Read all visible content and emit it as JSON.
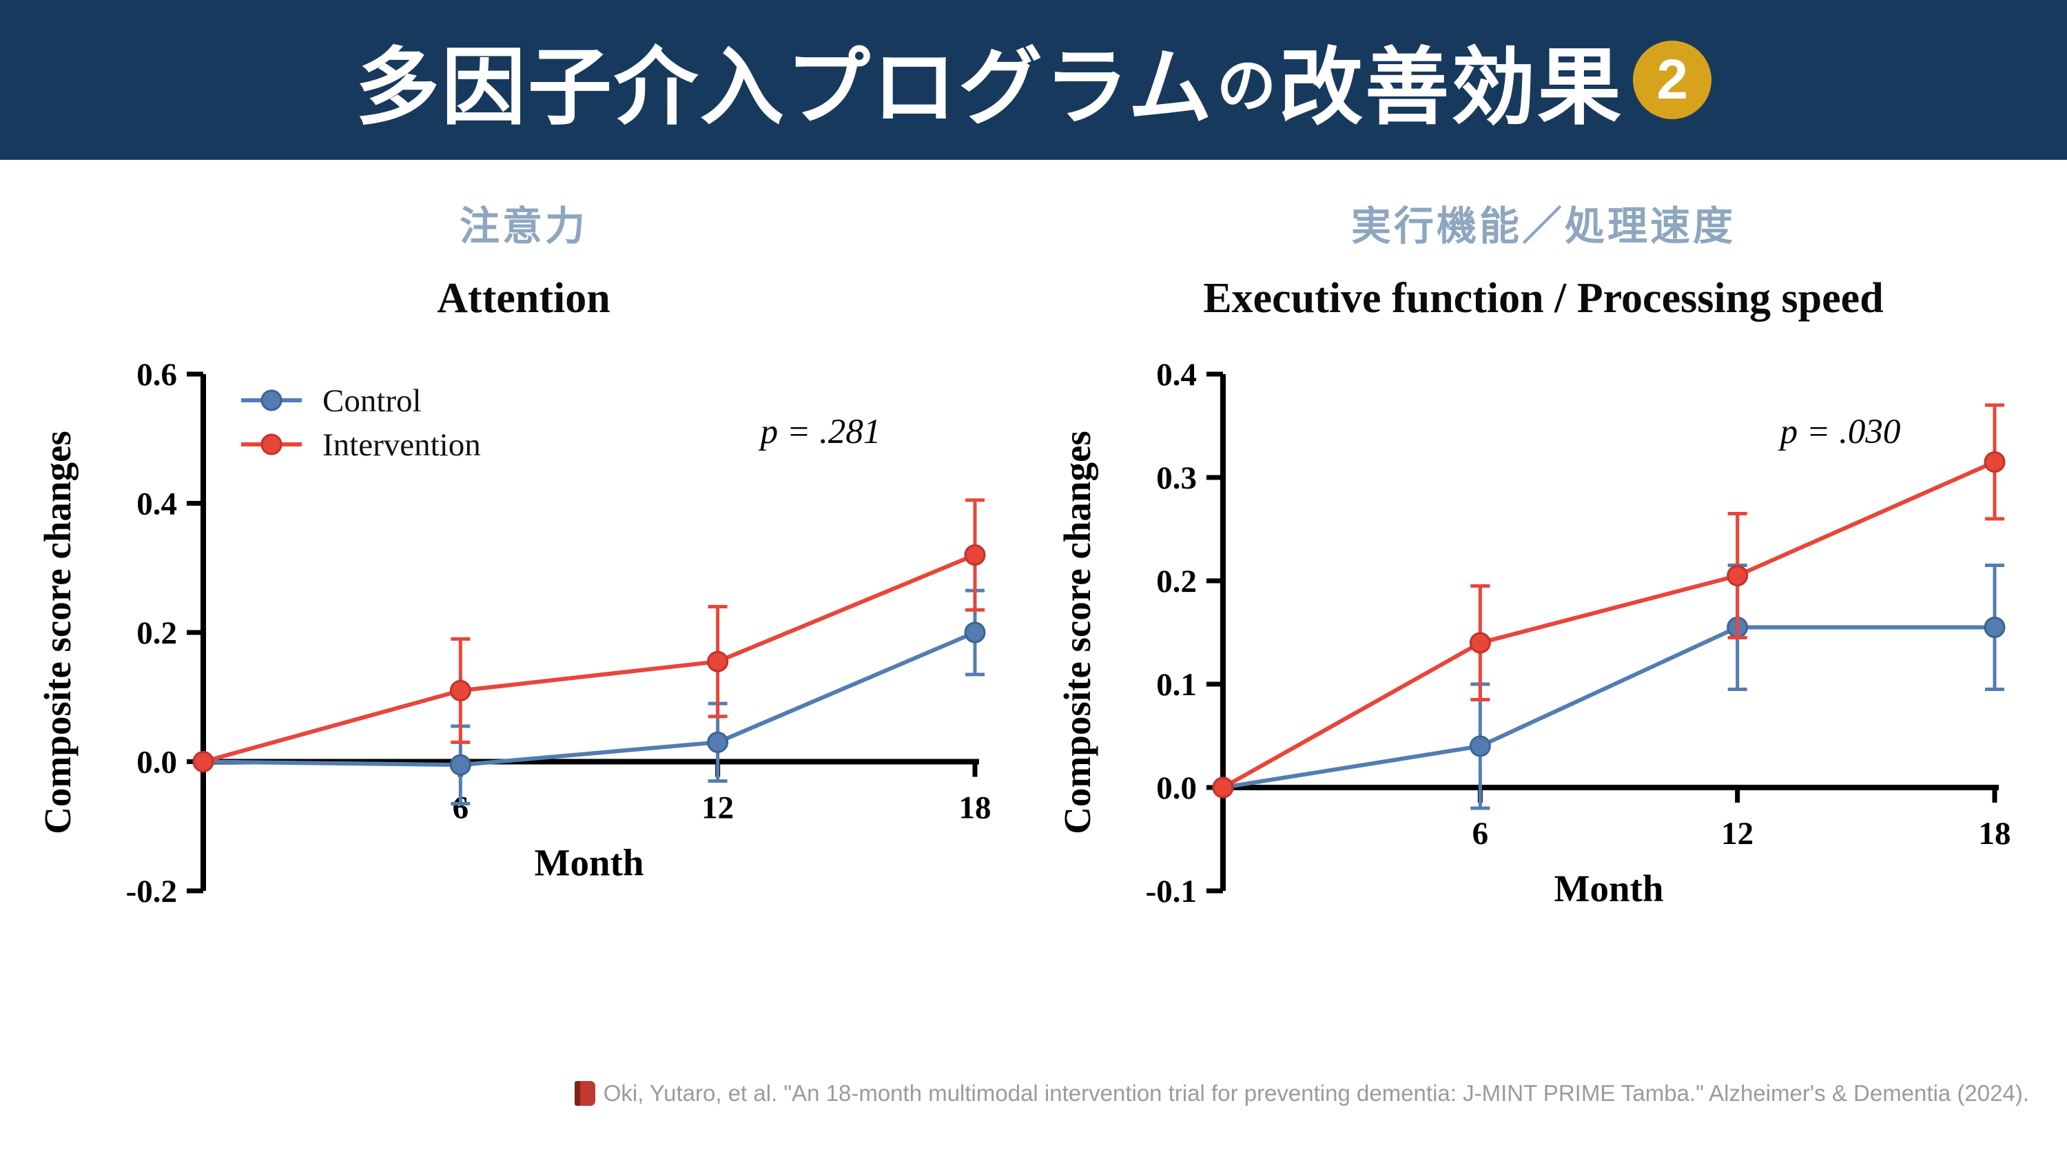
{
  "header": {
    "title_parts": [
      "多因子介入プログラム",
      "の",
      "改善効果"
    ],
    "badge": "2",
    "bg_color": "#17395d",
    "badge_color": "#d7a31d"
  },
  "colors": {
    "control": "#537db1",
    "control_edge": "#3b6494",
    "intervention": "#e8463a",
    "intervention_edge": "#c23228",
    "axis": "#000000"
  },
  "chart_data": [
    {
      "type": "line",
      "subtitle_ja": "注意力",
      "title": "Attention",
      "p_label": "p = .281",
      "xlabel": "Month",
      "ylabel": "Composite score changes",
      "x": [
        0,
        6,
        12,
        18
      ],
      "xticks": [
        6,
        12,
        18
      ],
      "xlim": [
        0,
        18
      ],
      "ylim": [
        -0.2,
        0.6
      ],
      "yticks": [
        -0.2,
        0.0,
        0.2,
        0.4,
        0.6
      ],
      "grid": false,
      "legend": true,
      "legend_position": "top-left",
      "series": [
        {
          "name": "Control",
          "color_key": "control",
          "values": [
            0,
            -0.005,
            0.03,
            0.2
          ],
          "errors": [
            0,
            0.06,
            0.06,
            0.065
          ]
        },
        {
          "name": "Intervention",
          "color_key": "intervention",
          "values": [
            0,
            0.11,
            0.155,
            0.32
          ],
          "errors": [
            0,
            0.08,
            0.085,
            0.085
          ]
        }
      ]
    },
    {
      "type": "line",
      "subtitle_ja": "実行機能／処理速度",
      "title": "Executive function / Processing speed",
      "p_label": "p = .030",
      "xlabel": "Month",
      "ylabel": "Composite score changes",
      "x": [
        0,
        6,
        12,
        18
      ],
      "xticks": [
        6,
        12,
        18
      ],
      "xlim": [
        0,
        18
      ],
      "ylim": [
        -0.1,
        0.4
      ],
      "yticks": [
        -0.1,
        0.0,
        0.1,
        0.2,
        0.3,
        0.4
      ],
      "grid": false,
      "legend": false,
      "legend_position": "none",
      "series": [
        {
          "name": "Control",
          "color_key": "control",
          "values": [
            0,
            0.04,
            0.155,
            0.155
          ],
          "errors": [
            0,
            0.06,
            0.06,
            0.06
          ]
        },
        {
          "name": "Intervention",
          "color_key": "intervention",
          "values": [
            0,
            0.14,
            0.205,
            0.315
          ],
          "errors": [
            0,
            0.055,
            0.06,
            0.055
          ]
        }
      ]
    }
  ],
  "footer": {
    "icon": "book-icon",
    "citation": "Oki, Yutaro, et al. \"An 18-month multimodal intervention trial for preventing dementia: J-MINT PRIME Tamba.\" Alzheimer's & Dementia (2024)."
  }
}
